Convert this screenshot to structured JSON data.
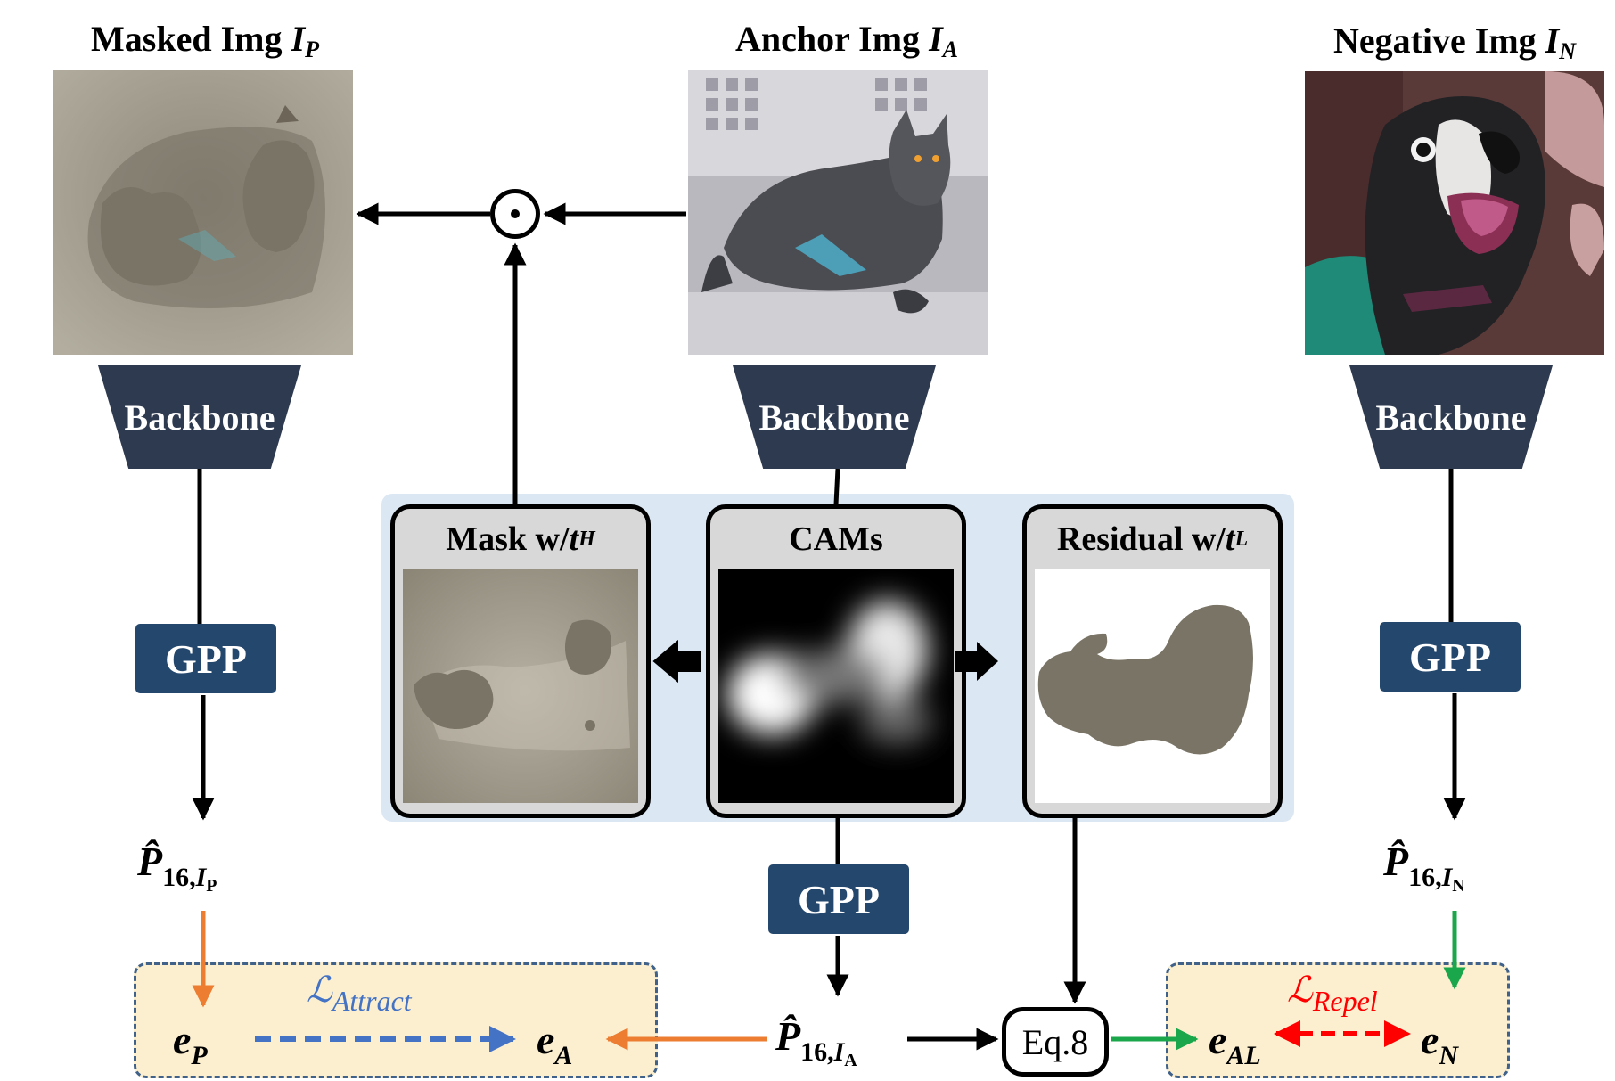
{
  "titles": {
    "masked": {
      "text": "Masked Img ",
      "var": "I",
      "sub": "P"
    },
    "anchor": {
      "text": "Anchor Img ",
      "var": "I",
      "sub": "A"
    },
    "negative": {
      "text": "Negative Img ",
      "var": "I",
      "sub": "N"
    }
  },
  "backbone_label": "Backbone",
  "gpp_label": "GPP",
  "panels": {
    "mask": {
      "text": "Mask w/ ",
      "var": "t",
      "sub": "H"
    },
    "cams": {
      "text": "CAMs"
    },
    "residual": {
      "text": "Residual w/ ",
      "var": "t",
      "sub": "L"
    }
  },
  "formulas": {
    "p_masked": {
      "main": "P̂",
      "num": "16,",
      "var": "I",
      "sub": "P"
    },
    "p_anchor": {
      "main": "P̂",
      "num": "16,",
      "var": "I",
      "sub": "A"
    },
    "p_negative": {
      "main": "P̂",
      "num": "16,",
      "var": "I",
      "sub": "N"
    }
  },
  "embeddings": {
    "e_p": {
      "main": "e",
      "sub": "P"
    },
    "e_a": {
      "main": "e",
      "sub": "A"
    },
    "e_al": {
      "main": "e",
      "sub": "AL"
    },
    "e_n": {
      "main": "e",
      "sub": "N"
    }
  },
  "losses": {
    "attract": {
      "symbol": "ℒ",
      "sub": "Attract",
      "color": "#4472c4"
    },
    "repel": {
      "symbol": "ℒ",
      "sub": "Repel",
      "color": "#ff0000"
    }
  },
  "eq_label": "Eq.8",
  "operator_symbol": "⊙",
  "colors": {
    "backbone": "#2e3a50",
    "gpp": "#24476d",
    "cam_region": "#dce7f4",
    "loss_region": "#fbefd0",
    "attract_arrow": "#4472c4",
    "repel_arrow": "#ff0000",
    "orange_arrow": "#ed7d31",
    "green_arrow": "#1aa64a",
    "masked_fill": "#7a7466"
  }
}
